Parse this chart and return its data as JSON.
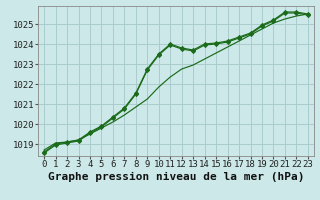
{
  "background_color": "#cce8e8",
  "grid_color": "#aacccc",
  "line_color": "#1a6b1a",
  "title": "Graphe pression niveau de la mer (hPa)",
  "xlim": [
    -0.5,
    23.5
  ],
  "ylim": [
    1018.4,
    1025.9
  ],
  "yticks": [
    1019,
    1020,
    1021,
    1022,
    1023,
    1024,
    1025
  ],
  "xticks": [
    0,
    1,
    2,
    3,
    4,
    5,
    6,
    7,
    8,
    9,
    10,
    11,
    12,
    13,
    14,
    15,
    16,
    17,
    18,
    19,
    20,
    21,
    22,
    23
  ],
  "line1_x": [
    0,
    1,
    2,
    3,
    4,
    5,
    6,
    7,
    8,
    9,
    10,
    11,
    12,
    13,
    14,
    15,
    16,
    17,
    18,
    19,
    20,
    21,
    22,
    23
  ],
  "line1_y": [
    1018.7,
    1019.05,
    1019.1,
    1019.2,
    1019.5,
    1019.8,
    1020.1,
    1020.45,
    1020.85,
    1021.25,
    1021.85,
    1022.35,
    1022.75,
    1022.95,
    1023.25,
    1023.55,
    1023.85,
    1024.15,
    1024.45,
    1024.75,
    1025.05,
    1025.25,
    1025.4,
    1025.5
  ],
  "line2_x": [
    0,
    1,
    2,
    3,
    4,
    5,
    6,
    7,
    8,
    9,
    10,
    11,
    12,
    13,
    14,
    15,
    16,
    17,
    18,
    19,
    20,
    21,
    22,
    23
  ],
  "line2_y": [
    1018.6,
    1019.0,
    1019.1,
    1019.2,
    1019.6,
    1019.9,
    1020.35,
    1020.8,
    1021.55,
    1022.75,
    1023.5,
    1024.0,
    1023.8,
    1023.7,
    1024.0,
    1024.05,
    1024.15,
    1024.35,
    1024.55,
    1024.95,
    1025.2,
    1025.6,
    1025.6,
    1025.5
  ],
  "line3_x": [
    0,
    1,
    2,
    3,
    4,
    5,
    6,
    7,
    8,
    9,
    10,
    11,
    12,
    13,
    14,
    15,
    16,
    17,
    18,
    19,
    20,
    21,
    22,
    23
  ],
  "line3_y": [
    1018.55,
    1018.95,
    1019.05,
    1019.15,
    1019.55,
    1019.85,
    1020.3,
    1020.75,
    1021.5,
    1022.7,
    1023.45,
    1023.95,
    1023.75,
    1023.65,
    1023.95,
    1024.0,
    1024.1,
    1024.3,
    1024.5,
    1024.9,
    1025.15,
    1025.55,
    1025.55,
    1025.45
  ],
  "title_fontsize": 8,
  "tick_fontsize": 6.5
}
